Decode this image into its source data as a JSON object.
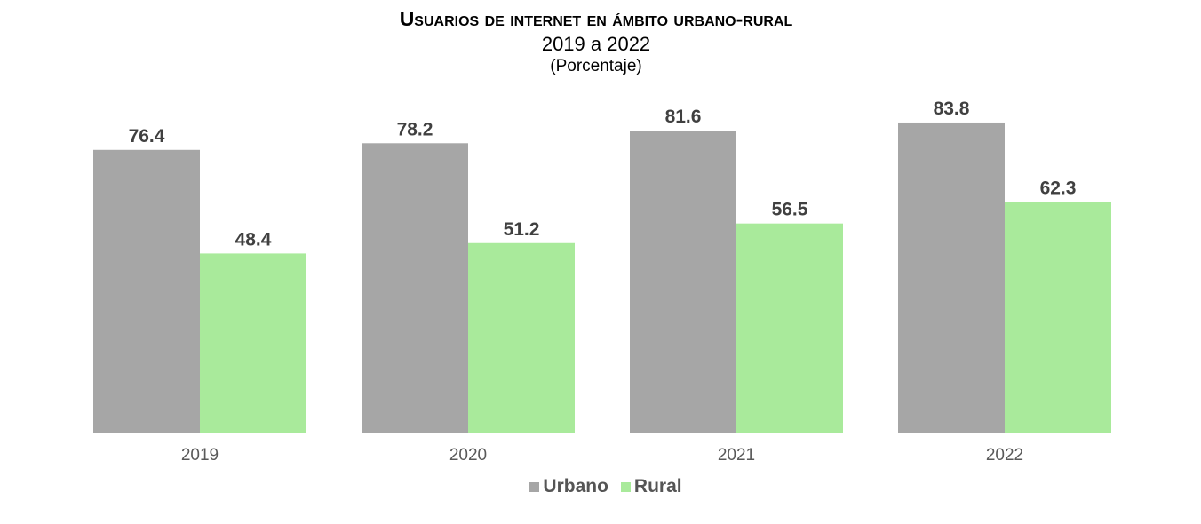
{
  "header": {
    "title": "Usuarios de internet en ámbito urbano-rural",
    "subtitle": "2019 a 2022",
    "unit": "(Porcentaje)"
  },
  "colors": {
    "urbano": "#a6a6a6",
    "rural": "#a9ea9b",
    "label": "#404040",
    "tick": "#595959"
  },
  "chart_data": {
    "type": "bar",
    "title": "Usuarios de internet en ámbito urbano-rural",
    "subtitle": "2019 a 2022",
    "ylabel": "",
    "xlabel": "",
    "categories": [
      "2019",
      "2020",
      "2021",
      "2022"
    ],
    "series": [
      {
        "name": "Urbano",
        "values": [
          76.4,
          78.2,
          81.6,
          83.8
        ],
        "labels": [
          "76.4",
          "78.2",
          "81.6",
          "83.8"
        ]
      },
      {
        "name": "Rural",
        "values": [
          48.4,
          51.2,
          56.5,
          62.3
        ],
        "labels": [
          "48.4",
          "51.2",
          "56.5",
          "62.3"
        ]
      }
    ],
    "ylim": [
      0,
      100
    ],
    "grid": false,
    "legend": "bottom"
  }
}
